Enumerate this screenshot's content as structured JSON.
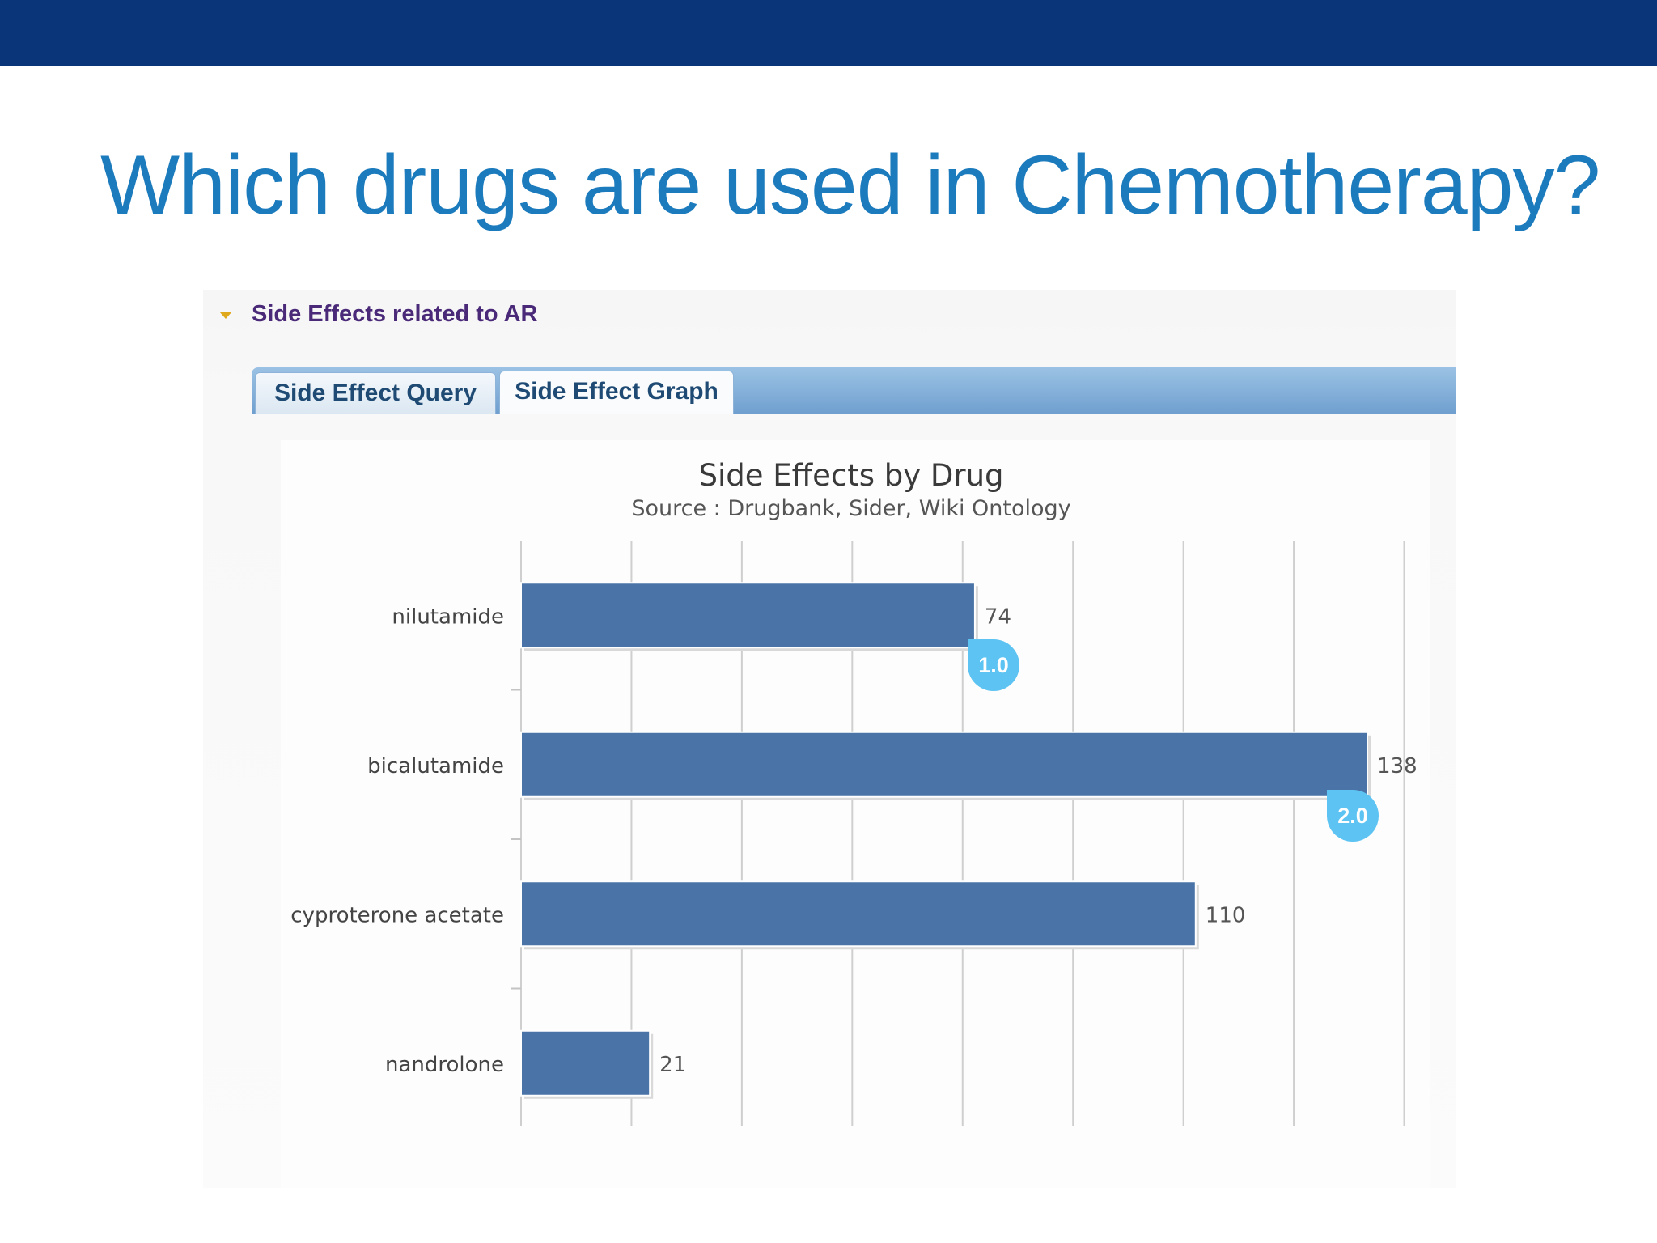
{
  "slide": {
    "title": "Which drugs are used in Chemotherapy?"
  },
  "panel": {
    "title": "Side Effects related to AR",
    "tabs": {
      "query": "Side Effect Query",
      "graph": "Side Effect Graph"
    }
  },
  "callouts": [
    "1.0",
    "2.0"
  ],
  "colors": {
    "bar": "#4a74a8",
    "callout": "#5cc3f2",
    "title": "#1b7bbd",
    "topbar": "#0b3579"
  },
  "chart_data": {
    "type": "bar",
    "orientation": "horizontal",
    "title": "Side Effects by Drug",
    "subtitle": "Source : Drugbank, Sider, Wiki Ontology",
    "categories": [
      "nilutamide",
      "bicalutamide",
      "cyproterone acetate",
      "nandrolone"
    ],
    "values": [
      74,
      138,
      110,
      21
    ],
    "xlim": [
      0,
      160
    ],
    "grid": true
  }
}
